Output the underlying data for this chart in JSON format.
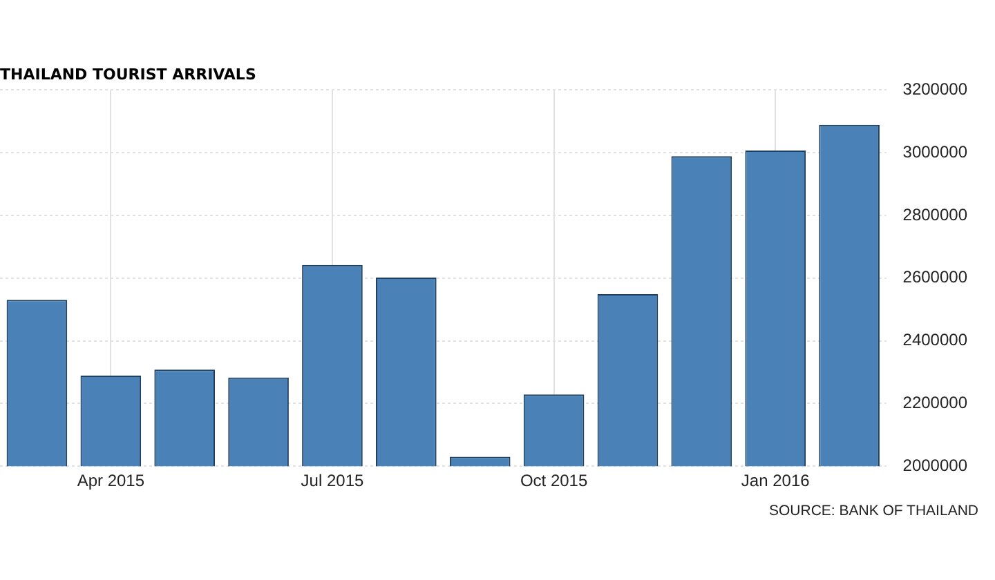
{
  "chart_data": {
    "type": "bar",
    "title": "THAILAND TOURIST ARRIVALS",
    "categories": [
      null,
      "Apr 2015",
      null,
      null,
      "Jul 2015",
      null,
      null,
      "Oct 2015",
      null,
      null,
      "Jan 2016",
      null
    ],
    "values": [
      2531000,
      2289000,
      2308000,
      2283000,
      2642000,
      2602000,
      2030000,
      2229000,
      2549000,
      2989000,
      3007000,
      3089000
    ],
    "color": "#4a82b8",
    "ylim": [
      2000000,
      3200000
    ],
    "yticks": [
      2000000,
      2200000,
      2400000,
      2600000,
      2800000,
      3000000,
      3200000
    ],
    "grid": true,
    "legend": false,
    "annotations": [
      "SOURCE: BANK OF THAILAND"
    ]
  }
}
